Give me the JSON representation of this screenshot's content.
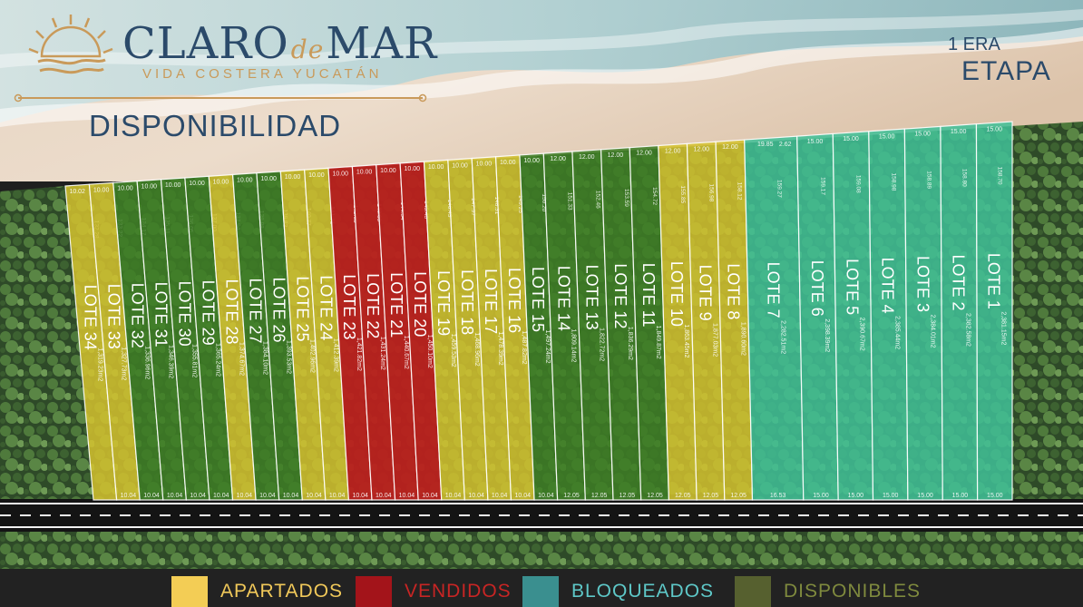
{
  "brand": {
    "word1": "CLARO",
    "word_de": "de",
    "word2": "MAR",
    "tagline": "VIDA COSTERA YUCATÁN"
  },
  "page_title": "DISPONIBILIDAD",
  "etapa": {
    "line1": "1 ERA",
    "line2": "ETAPA"
  },
  "colors": {
    "apartado": "#d2bf2c",
    "vendido": "#b8201e",
    "bloqueado": "#3dba95",
    "disponible": "#3e7d24",
    "logo_blue": "#2b4a6a",
    "logo_gold": "#c99a5a"
  },
  "legend": [
    {
      "label": "APARTADOS",
      "color": "#f3cd55",
      "text_color": "#f1c95a"
    },
    {
      "label": "VENDIDOS",
      "color": "#a3141a",
      "text_color": "#c82524"
    },
    {
      "label": "BLOQUEADOS",
      "color": "#3a8f8f",
      "text_color": "#5ec8c8"
    },
    {
      "label": "DISPONIBLES",
      "color": "#56602f",
      "text_color": "#7f8a3e"
    }
  ],
  "lots": [
    {
      "num": 34,
      "label": "LOTE 34",
      "status": "apartado",
      "area": "1,319.23m2",
      "depth": "132.28",
      "front": "10.02",
      "road": ""
    },
    {
      "num": 33,
      "label": "LOTE 33",
      "status": "apartado",
      "area": "1,327.73m2",
      "depth": "133.22",
      "front": "10.00",
      "road": "10.04"
    },
    {
      "num": 32,
      "label": "LOTE 32",
      "status": "disponible",
      "area": "1,336.96m2",
      "depth": "134.17",
      "front": "10.00",
      "road": "10.04"
    },
    {
      "num": 31,
      "label": "LOTE 31",
      "status": "disponible",
      "area": "1,346.39m2",
      "depth": "135.11",
      "front": "10.00",
      "road": "10.04"
    },
    {
      "num": 30,
      "label": "LOTE 30",
      "status": "disponible",
      "area": "1,355.81m2",
      "depth": "136.05",
      "front": "10.00",
      "road": "10.04"
    },
    {
      "num": 29,
      "label": "LOTE 29",
      "status": "disponible",
      "area": "1,365.24m2",
      "depth": "137.00",
      "front": "10.00",
      "road": "10.04"
    },
    {
      "num": 28,
      "label": "LOTE 28",
      "status": "apartado",
      "area": "1,374.67m2",
      "depth": "137.94",
      "front": "10.00",
      "road": "10.04"
    },
    {
      "num": 27,
      "label": "LOTE 27",
      "status": "disponible",
      "area": "1,384.10m2",
      "depth": "138.88",
      "front": "10.00",
      "road": "10.04"
    },
    {
      "num": 26,
      "label": "LOTE 26",
      "status": "disponible",
      "area": "1,393.53m2",
      "depth": "139.83",
      "front": "10.00",
      "road": "10.04"
    },
    {
      "num": 25,
      "label": "LOTE 25",
      "status": "apartado",
      "area": "1,402.96m2",
      "depth": "140.77",
      "front": "10.00",
      "road": "10.04"
    },
    {
      "num": 24,
      "label": "LOTE 24",
      "status": "apartado",
      "area": "1,412.39m2",
      "depth": "141.71",
      "front": "10.00",
      "road": "10.04"
    },
    {
      "num": 23,
      "label": "LOTE 23",
      "status": "vendido",
      "area": "1,421.82m2",
      "depth": "142.65",
      "front": "10.00",
      "road": "10.04"
    },
    {
      "num": 22,
      "label": "LOTE 22",
      "status": "vendido",
      "area": "1,431.24m2",
      "depth": "143.60",
      "front": "10.00",
      "road": "10.04"
    },
    {
      "num": 21,
      "label": "LOTE 21",
      "status": "vendido",
      "area": "1,440.67m2",
      "depth": "144.54",
      "front": "10.00",
      "road": "10.04"
    },
    {
      "num": 20,
      "label": "LOTE 20",
      "status": "vendido",
      "area": "1,450.10m2",
      "depth": "145.48",
      "front": "10.00",
      "road": "10.04"
    },
    {
      "num": 19,
      "label": "LOTE 19",
      "status": "apartado",
      "area": "1,459.53m2",
      "depth": "146.43",
      "front": "10.00",
      "road": "10.04"
    },
    {
      "num": 18,
      "label": "LOTE 18",
      "status": "apartado",
      "area": "1,468.96m2",
      "depth": "147.37",
      "front": "10.00",
      "road": "10.04"
    },
    {
      "num": 17,
      "label": "LOTE 17",
      "status": "apartado",
      "area": "1,478.39m2",
      "depth": "148.31",
      "front": "10.00",
      "road": "10.04"
    },
    {
      "num": 16,
      "label": "LOTE 16",
      "status": "apartado",
      "area": "1,487.82m2",
      "depth": "149.25",
      "front": "10.00",
      "road": "10.04"
    },
    {
      "num": 15,
      "label": "LOTE 15",
      "status": "disponible",
      "area": "1,497.24m2",
      "depth": "150.20",
      "front": "10.00",
      "road": "10.04"
    },
    {
      "num": 14,
      "label": "LOTE 14",
      "status": "disponible",
      "area": "1,809.14m2",
      "depth": "151.33",
      "front": "12.00",
      "road": "12.05"
    },
    {
      "num": 13,
      "label": "LOTE 13",
      "status": "disponible",
      "area": "1,822.72m2",
      "depth": "152.46",
      "front": "12.00",
      "road": "12.05"
    },
    {
      "num": 12,
      "label": "LOTE 12",
      "status": "disponible",
      "area": "1,836.29m2",
      "depth": "153.59",
      "front": "12.00",
      "road": "12.05"
    },
    {
      "num": 11,
      "label": "LOTE 11",
      "status": "disponible",
      "area": "1,849.87m2",
      "depth": "154.72",
      "front": "12.00",
      "road": "12.05"
    },
    {
      "num": 10,
      "label": "LOTE 10",
      "status": "apartado",
      "area": "1,863.45m2",
      "depth": "155.85",
      "front": "12.00",
      "road": "12.05"
    },
    {
      "num": 9,
      "label": "LOTE 9",
      "status": "apartado",
      "area": "1,877.03m2",
      "depth": "156.98",
      "front": "12.00",
      "road": "12.05"
    },
    {
      "num": 8,
      "label": "LOTE 8",
      "status": "apartado",
      "area": "1,890.60m2",
      "depth": "158.12",
      "front": "12.00",
      "road": "12.05"
    },
    {
      "num": 7,
      "label": "LOTE 7",
      "status": "bloqueado",
      "area": "2,282.51m2",
      "depth": "159.27",
      "front": "19.85",
      "front2": "2.62",
      "road": "16.53"
    },
    {
      "num": 6,
      "label": "LOTE 6",
      "status": "bloqueado",
      "area": "2,398.39m2",
      "depth": "159.17",
      "front": "15.00",
      "road": "15.00"
    },
    {
      "num": 5,
      "label": "LOTE 5",
      "status": "bloqueado",
      "area": "2,390.67m2",
      "depth": "159.08",
      "front": "15.00",
      "road": "15.00"
    },
    {
      "num": 4,
      "label": "LOTE 4",
      "status": "bloqueado",
      "area": "2,385.44m2",
      "depth": "158.98",
      "front": "15.00",
      "road": "15.00"
    },
    {
      "num": 3,
      "label": "LOTE 3",
      "status": "bloqueado",
      "area": "2,384.01m2",
      "depth": "158.89",
      "front": "15.00",
      "road": "15.00"
    },
    {
      "num": 2,
      "label": "LOTE 2",
      "status": "bloqueado",
      "area": "2,382.58m2",
      "depth": "158.80",
      "front": "15.00",
      "road": "15.00"
    },
    {
      "num": 1,
      "label": "LOTE 1",
      "status": "bloqueado",
      "area": "2,381.15m2",
      "depth": "158.70",
      "front": "15.00",
      "road": "15.00"
    }
  ]
}
